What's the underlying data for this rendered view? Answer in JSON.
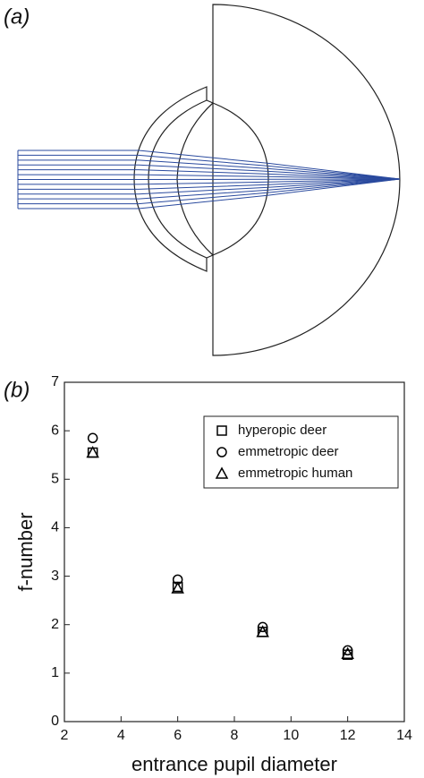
{
  "panel_labels": [
    "(a)",
    "(b)"
  ],
  "chart_data": {
    "type": "scatter",
    "x_label": "entrance pupil diameter",
    "y_label": "f-number",
    "x": [
      3,
      6,
      9,
      12
    ],
    "series": [
      {
        "name": "hyperopic deer",
        "color": "#000000",
        "marker": "square",
        "values": [
          5.55,
          2.78,
          1.85,
          1.38
        ]
      },
      {
        "name": "emmetropic deer",
        "color": "#000000",
        "marker": "circle",
        "values": [
          5.85,
          2.93,
          1.95,
          1.47
        ]
      },
      {
        "name": "emmetropic human",
        "color": "#000000",
        "marker": "triangle",
        "values": [
          5.55,
          2.75,
          1.85,
          1.4
        ]
      }
    ],
    "xlim": [
      2,
      14
    ],
    "xticks": [
      2,
      4,
      6,
      8,
      10,
      12,
      14
    ],
    "ylim": [
      0,
      7
    ],
    "yticks": [
      0,
      1,
      2,
      3,
      4,
      5,
      6,
      7
    ],
    "legend": "upper-right",
    "grid": false
  }
}
